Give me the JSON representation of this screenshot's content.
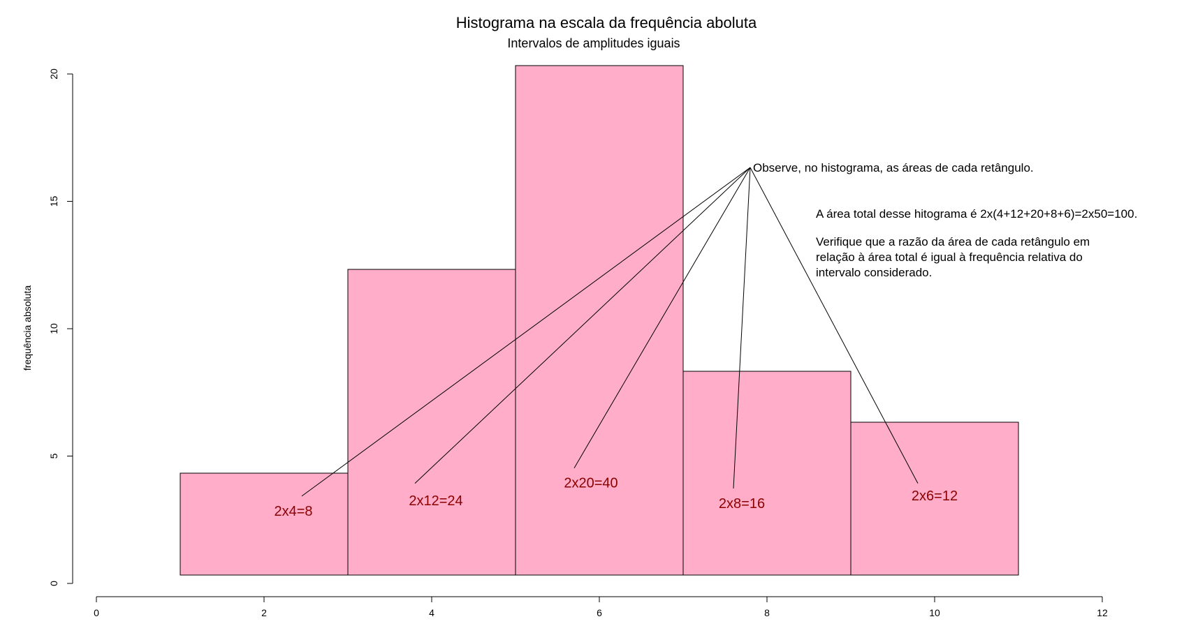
{
  "chart_data": {
    "type": "bar",
    "title": "Histograma na escala da frequência aboluta",
    "subtitle": "Intervalos de amplitudes iguais",
    "ylabel": "frequência absoluta",
    "xlabel": "",
    "xlim": [
      0,
      12
    ],
    "ylim": [
      0,
      20
    ],
    "x_ticks": [
      0,
      2,
      4,
      6,
      8,
      10,
      12
    ],
    "y_ticks": [
      0,
      5,
      10,
      15,
      20
    ],
    "bins": [
      {
        "from": 1,
        "to": 3,
        "value": 4
      },
      {
        "from": 3,
        "to": 5,
        "value": 12
      },
      {
        "from": 5,
        "to": 7,
        "value": 20
      },
      {
        "from": 7,
        "to": 9,
        "value": 8
      },
      {
        "from": 9,
        "to": 11,
        "value": 6
      }
    ],
    "bar_color": "#FFADC9",
    "area_label_color": "#8B0000",
    "area_labels": [
      {
        "text": "2x4=8",
        "x": 2.35,
        "y": 2.5,
        "line_from": [
          2.45,
          3.1
        ]
      },
      {
        "text": "2x12=24",
        "x": 4.05,
        "y": 2.9,
        "line_from": [
          3.8,
          3.6
        ]
      },
      {
        "text": "2x20=40",
        "x": 5.9,
        "y": 3.6,
        "line_from": [
          5.7,
          4.2
        ]
      },
      {
        "text": "2x8=16",
        "x": 7.7,
        "y": 2.8,
        "line_from": [
          7.6,
          3.4
        ]
      },
      {
        "text": "2x6=12",
        "x": 10.0,
        "y": 3.1,
        "line_from": [
          9.8,
          3.6
        ]
      }
    ],
    "annotation_point": [
      7.8,
      16
    ],
    "annotations": {
      "observe": "Observe, no histograma, as áreas de cada retângulo.",
      "total_area": "A área total desse hitograma é 2x(4+12+20+8+6)=2x50=100.",
      "verify_lines": [
        "Verifique que a razão da área de cada retângulo em",
        "relação à área total é igual à frequência relativa do",
        "intervalo considerado."
      ]
    }
  }
}
